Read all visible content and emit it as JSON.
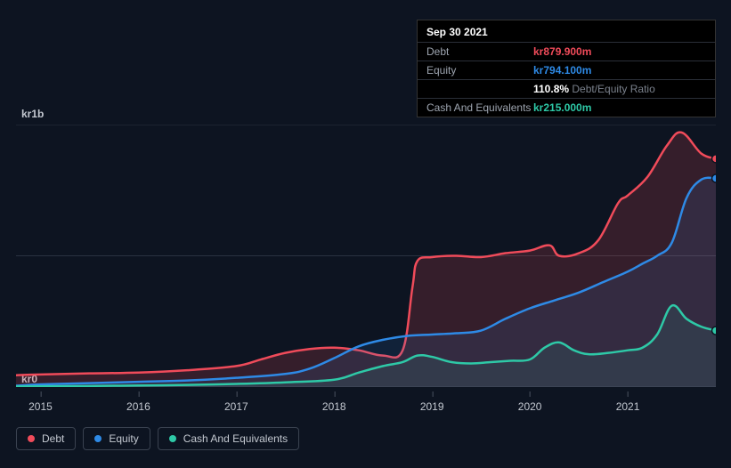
{
  "tooltip": {
    "date": "Sep 30 2021",
    "rows": [
      {
        "label": "Debt",
        "value": "kr879.900m",
        "cls": "debt"
      },
      {
        "label": "Equity",
        "value": "kr794.100m",
        "cls": "equity"
      },
      {
        "label": "",
        "pct": "110.8%",
        "desc": "Debt/Equity Ratio",
        "cls": "ratio"
      },
      {
        "label": "Cash And Equivalents",
        "value": "kr215.000m",
        "cls": "cash"
      }
    ]
  },
  "chart": {
    "type": "line",
    "background_color": "#0d1421",
    "grid_color": "#2a3240",
    "y_labels": {
      "top": "kr1b",
      "bottom": "kr0"
    },
    "ylim": [
      0,
      1000
    ],
    "grid_y_values": [
      0,
      500,
      1000
    ],
    "x_years": [
      "2015",
      "2016",
      "2017",
      "2018",
      "2019",
      "2020",
      "2021"
    ],
    "x_range": [
      2014.75,
      2021.9
    ],
    "series": {
      "debt": {
        "color": "#f04b5a",
        "fill": "rgba(240,75,90,0.18)",
        "points": [
          [
            2014.75,
            45
          ],
          [
            2015.0,
            48
          ],
          [
            2015.5,
            52
          ],
          [
            2016.0,
            55
          ],
          [
            2016.5,
            64
          ],
          [
            2017.0,
            80
          ],
          [
            2017.25,
            105
          ],
          [
            2017.5,
            130
          ],
          [
            2017.75,
            145
          ],
          [
            2018.0,
            150
          ],
          [
            2018.25,
            140
          ],
          [
            2018.5,
            120
          ],
          [
            2018.7,
            140
          ],
          [
            2018.8,
            380
          ],
          [
            2018.85,
            480
          ],
          [
            2019.0,
            495
          ],
          [
            2019.25,
            500
          ],
          [
            2019.5,
            495
          ],
          [
            2019.75,
            510
          ],
          [
            2020.0,
            520
          ],
          [
            2020.2,
            540
          ],
          [
            2020.3,
            500
          ],
          [
            2020.5,
            510
          ],
          [
            2020.7,
            560
          ],
          [
            2020.9,
            700
          ],
          [
            2021.0,
            730
          ],
          [
            2021.2,
            800
          ],
          [
            2021.4,
            920
          ],
          [
            2021.55,
            970
          ],
          [
            2021.75,
            890
          ],
          [
            2021.9,
            870
          ]
        ]
      },
      "equity": {
        "color": "#2e8ae6",
        "fill": "rgba(46,138,230,0.12)",
        "points": [
          [
            2014.75,
            5
          ],
          [
            2015.0,
            10
          ],
          [
            2015.5,
            15
          ],
          [
            2016.0,
            20
          ],
          [
            2016.5,
            25
          ],
          [
            2017.0,
            35
          ],
          [
            2017.5,
            50
          ],
          [
            2017.75,
            70
          ],
          [
            2018.0,
            110
          ],
          [
            2018.25,
            155
          ],
          [
            2018.5,
            180
          ],
          [
            2018.75,
            195
          ],
          [
            2019.0,
            200
          ],
          [
            2019.25,
            205
          ],
          [
            2019.5,
            215
          ],
          [
            2019.75,
            260
          ],
          [
            2020.0,
            300
          ],
          [
            2020.25,
            330
          ],
          [
            2020.5,
            360
          ],
          [
            2020.75,
            400
          ],
          [
            2021.0,
            440
          ],
          [
            2021.15,
            470
          ],
          [
            2021.3,
            500
          ],
          [
            2021.45,
            550
          ],
          [
            2021.6,
            720
          ],
          [
            2021.75,
            790
          ],
          [
            2021.9,
            795
          ]
        ]
      },
      "cash": {
        "color": "#2ec9a7",
        "fill": "rgba(46,201,167,0.10)",
        "points": [
          [
            2014.75,
            2
          ],
          [
            2015.5,
            4
          ],
          [
            2016.0,
            6
          ],
          [
            2016.5,
            8
          ],
          [
            2017.0,
            12
          ],
          [
            2017.5,
            18
          ],
          [
            2018.0,
            28
          ],
          [
            2018.25,
            55
          ],
          [
            2018.5,
            80
          ],
          [
            2018.7,
            95
          ],
          [
            2018.85,
            120
          ],
          [
            2019.0,
            115
          ],
          [
            2019.2,
            95
          ],
          [
            2019.4,
            90
          ],
          [
            2019.6,
            95
          ],
          [
            2019.8,
            100
          ],
          [
            2020.0,
            105
          ],
          [
            2020.15,
            150
          ],
          [
            2020.3,
            170
          ],
          [
            2020.45,
            140
          ],
          [
            2020.6,
            125
          ],
          [
            2020.8,
            130
          ],
          [
            2021.0,
            140
          ],
          [
            2021.15,
            150
          ],
          [
            2021.3,
            200
          ],
          [
            2021.45,
            310
          ],
          [
            2021.6,
            260
          ],
          [
            2021.75,
            230
          ],
          [
            2021.9,
            215
          ]
        ]
      }
    }
  },
  "legend": [
    {
      "label": "Debt",
      "cls": "debt"
    },
    {
      "label": "Equity",
      "cls": "equity"
    },
    {
      "label": "Cash And Equivalents",
      "cls": "cash"
    }
  ]
}
